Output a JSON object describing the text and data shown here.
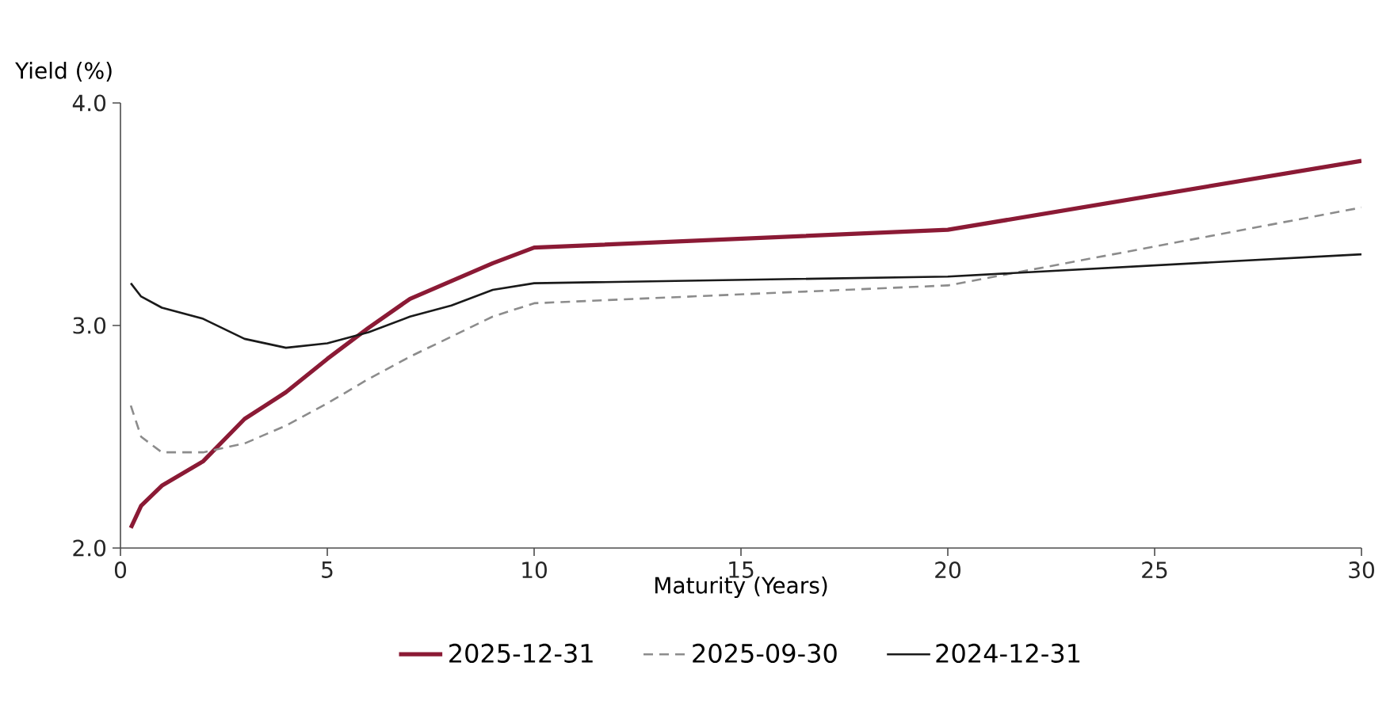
{
  "chart_data": {
    "type": "line",
    "xlabel": "Maturity (Years)",
    "ylabel": "Yield (%)",
    "x": [
      0.25,
      0.5,
      1,
      2,
      3,
      4,
      5,
      6,
      7,
      8,
      9,
      10,
      20,
      30
    ],
    "series": [
      {
        "name": "2025-12-31",
        "color": "#8b1a35",
        "line_style": "solid",
        "values": [
          2.09,
          2.19,
          2.28,
          2.39,
          2.58,
          2.7,
          2.85,
          2.99,
          3.12,
          3.2,
          3.28,
          3.35,
          3.43,
          3.74
        ]
      },
      {
        "name": "2025-09-30",
        "color": "#8c8c8c",
        "line_style": "dashed",
        "values": [
          2.64,
          2.5,
          2.43,
          2.43,
          2.47,
          2.55,
          2.65,
          2.76,
          2.86,
          2.95,
          3.04,
          3.1,
          3.18,
          3.53
        ]
      },
      {
        "name": "2024-12-31",
        "color": "#1a1a1a",
        "line_style": "solid",
        "values": [
          3.19,
          3.13,
          3.08,
          3.03,
          2.94,
          2.9,
          2.92,
          2.97,
          3.04,
          3.09,
          3.16,
          3.19,
          3.22,
          3.32
        ]
      }
    ],
    "xlim": [
      0,
      30
    ],
    "xticks": [
      0,
      5,
      10,
      15,
      20,
      25,
      30
    ],
    "ylim": [
      2.0,
      4.0
    ],
    "yticks": [
      {
        "value": 2.0,
        "label": "2.0"
      },
      {
        "value": 3.0,
        "label": "3.0"
      },
      {
        "value": 4.0,
        "label": "4.0"
      }
    ],
    "grid": false,
    "legend": "bottom",
    "marker": "none"
  }
}
